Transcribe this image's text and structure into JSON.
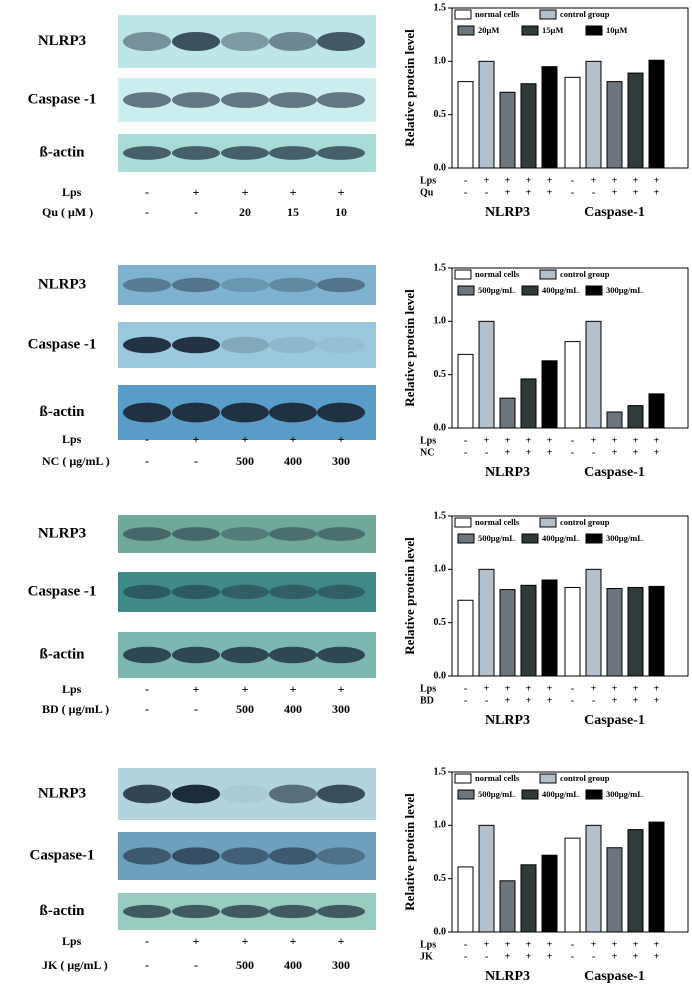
{
  "blots": [
    {
      "rows": [
        "NLRP3",
        "Caspase -1",
        "ß-actin"
      ],
      "treatments": [
        {
          "label": "Lps",
          "marks": [
            "-",
            "+",
            "+",
            "+",
            "+"
          ]
        },
        {
          "label": "Qu ( μM )",
          "marks": [
            "-",
            "-",
            "20",
            "15",
            "10"
          ]
        }
      ]
    },
    {
      "rows": [
        "NLRP3",
        "Caspase -1",
        "ß-actin"
      ],
      "treatments": [
        {
          "label": "Lps",
          "marks": [
            "-",
            "+",
            "+",
            "+",
            "+"
          ]
        },
        {
          "label": "NC ( μg/mL )",
          "marks": [
            "-",
            "-",
            "500",
            "400",
            "300"
          ]
        }
      ]
    },
    {
      "rows": [
        "NLRP3",
        "Caspase -1",
        "ß-actin"
      ],
      "treatments": [
        {
          "label": "Lps",
          "marks": [
            "-",
            "+",
            "+",
            "+",
            "+"
          ]
        },
        {
          "label": "BD ( μg/mL )",
          "marks": [
            "-",
            "-",
            "500",
            "400",
            "300"
          ]
        }
      ]
    },
    {
      "rows": [
        "NLRP3",
        "Caspase-1",
        "ß-actin"
      ],
      "treatments": [
        {
          "label": "Lps",
          "marks": [
            "-",
            "+",
            "+",
            "+",
            "+"
          ]
        },
        {
          "label": "JK ( μg/mL )",
          "marks": [
            "-",
            "-",
            "500",
            "400",
            "300"
          ]
        }
      ]
    }
  ],
  "chart_data": [
    {
      "type": "bar",
      "y_label": "Relative protein level",
      "categories": [
        "NLRP3",
        "Caspase-1"
      ],
      "series": [
        {
          "name": "normal cells",
          "color": "#ffffff",
          "values": [
            0.81,
            0.85
          ]
        },
        {
          "name": "control group",
          "color": "#b4bfcc",
          "values": [
            1.0,
            1.0
          ]
        },
        {
          "name": "20μM",
          "color": "#6d767c",
          "values": [
            0.71,
            0.81
          ]
        },
        {
          "name": "15μM",
          "color": "#2f3a3a",
          "values": [
            0.79,
            0.89
          ]
        },
        {
          "name": "10μM",
          "color": "#000000",
          "values": [
            0.95,
            1.01
          ]
        }
      ],
      "ylim": [
        0,
        1.5
      ],
      "yticks": [
        {
          "value": 0,
          "label": "0.0"
        },
        0.5,
        {
          "value": 1,
          "label": "1.0"
        },
        1.5
      ],
      "treatments": [
        {
          "label": "Lps",
          "marks": [
            "-",
            "+",
            "+",
            "+",
            "+"
          ]
        },
        {
          "label": "Qu",
          "marks": [
            "-",
            "-",
            "+",
            "+",
            "+"
          ]
        }
      ]
    },
    {
      "type": "bar",
      "y_label": "Relative protein level",
      "categories": [
        "NLRP3",
        "Caspase-1"
      ],
      "series": [
        {
          "name": "normal cells",
          "color": "#ffffff",
          "values": [
            0.69,
            0.81
          ]
        },
        {
          "name": "control group",
          "color": "#b4bfcc",
          "values": [
            1.0,
            1.0
          ]
        },
        {
          "name": "500μg/mL",
          "color": "#6d767c",
          "values": [
            0.28,
            0.15
          ]
        },
        {
          "name": "400μg/mL",
          "color": "#2f3a3a",
          "values": [
            0.46,
            0.21
          ]
        },
        {
          "name": "300μg/mL",
          "color": "#000000",
          "values": [
            0.63,
            0.32
          ]
        }
      ],
      "ylim": [
        0,
        1.5
      ],
      "yticks": [
        {
          "value": 0,
          "label": "0.0"
        },
        0.5,
        {
          "value": 1,
          "label": "1.0"
        },
        1.5
      ],
      "treatments": [
        {
          "label": "Lps",
          "marks": [
            "-",
            "+",
            "+",
            "+",
            "+"
          ]
        },
        {
          "label": "NC",
          "marks": [
            "-",
            "-",
            "+",
            "+",
            "+"
          ]
        }
      ]
    },
    {
      "type": "bar",
      "y_label": "Relative protein level",
      "categories": [
        "NLRP3",
        "Caspase-1"
      ],
      "series": [
        {
          "name": "normal cells",
          "color": "#ffffff",
          "values": [
            0.71,
            0.83
          ]
        },
        {
          "name": "control group",
          "color": "#b4bfcc",
          "values": [
            1.0,
            1.0
          ]
        },
        {
          "name": "500μg/mL",
          "color": "#6d767c",
          "values": [
            0.81,
            0.82
          ]
        },
        {
          "name": "400μg/mL",
          "color": "#2f3a3a",
          "values": [
            0.85,
            0.83
          ]
        },
        {
          "name": "300μg/mL",
          "color": "#000000",
          "values": [
            0.9,
            0.84
          ]
        }
      ],
      "ylim": [
        0,
        1.5
      ],
      "yticks": [
        {
          "value": 0,
          "label": "0.0"
        },
        0.5,
        {
          "value": 1,
          "label": "1.0"
        },
        1.5
      ],
      "treatments": [
        {
          "label": "Lps",
          "marks": [
            "-",
            "+",
            "+",
            "+",
            "+"
          ]
        },
        {
          "label": "BD",
          "marks": [
            "-",
            "-",
            "+",
            "+",
            "+"
          ]
        }
      ]
    },
    {
      "type": "bar",
      "y_label": "Relative protein level",
      "categories": [
        "NLRP3",
        "Caspase-1"
      ],
      "series": [
        {
          "name": "normal cells",
          "color": "#ffffff",
          "values": [
            0.61,
            0.88
          ]
        },
        {
          "name": "control group",
          "color": "#b4bfcc",
          "values": [
            1.0,
            1.0
          ]
        },
        {
          "name": "500μg/mL",
          "color": "#6d767c",
          "values": [
            0.48,
            0.79
          ]
        },
        {
          "name": "400μg/mL",
          "color": "#2f3a3a",
          "values": [
            0.63,
            0.96
          ]
        },
        {
          "name": "300μg/mL",
          "color": "#000000",
          "values": [
            0.72,
            1.03
          ]
        }
      ],
      "ylim": [
        0,
        1.5
      ],
      "yticks": [
        {
          "value": 0,
          "label": "0.0"
        },
        0.5,
        {
          "value": 1,
          "label": "1.0"
        },
        1.5
      ],
      "treatments": [
        {
          "label": "Lps",
          "marks": [
            "-",
            "+",
            "+",
            "+",
            "+"
          ]
        },
        {
          "label": "JK",
          "marks": [
            "-",
            "-",
            "+",
            "+",
            "+"
          ]
        }
      ]
    }
  ]
}
